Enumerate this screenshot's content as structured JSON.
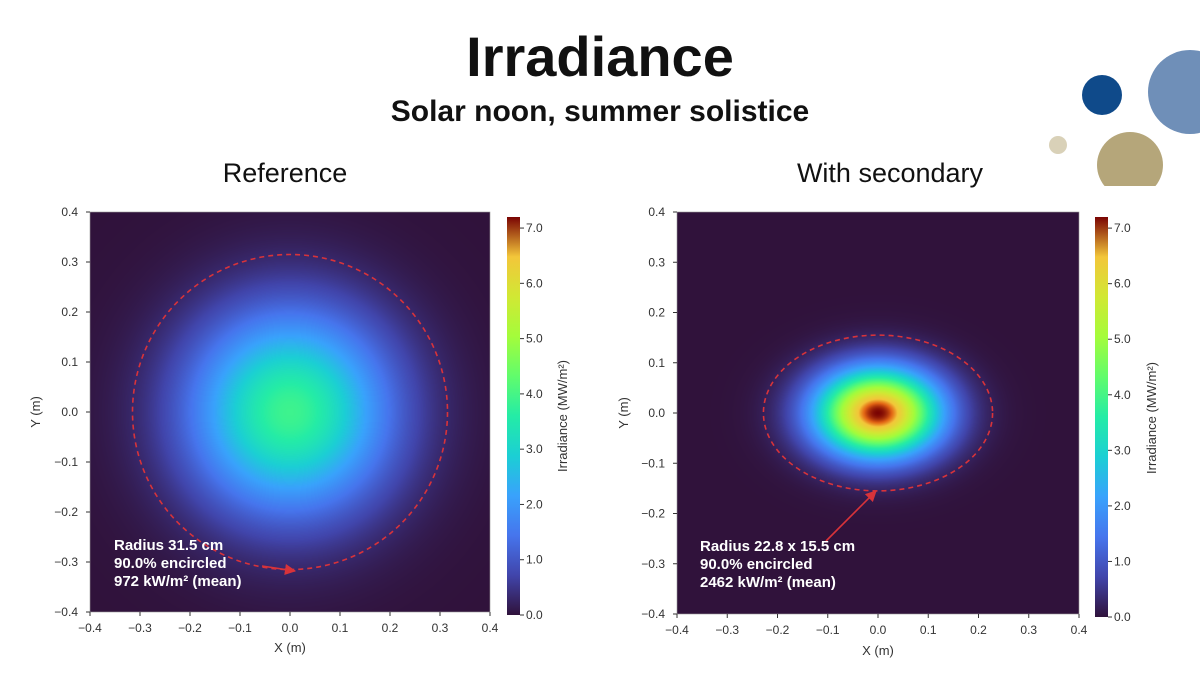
{
  "slide": {
    "title": "Irradiance",
    "subtitle": "Solar noon, summer solistice",
    "decor_colors": [
      "#0f4a8a",
      "#6f8fb8",
      "#b5a67a",
      "#d9d1b8"
    ]
  },
  "chart_data": [
    {
      "type": "heatmap",
      "panel_title": "Reference",
      "xlabel": "X (m)",
      "ylabel": "Y (m)",
      "xlim": [
        -0.4,
        0.4
      ],
      "ylim": [
        -0.4,
        0.4
      ],
      "x_ticks": [
        "−0.4",
        "−0.3",
        "−0.2",
        "−0.1",
        "0.0",
        "0.1",
        "0.2",
        "0.3",
        "0.4"
      ],
      "y_ticks": [
        "0.4",
        "0.3",
        "0.2",
        "0.1",
        "0.0",
        "−0.1",
        "−0.2",
        "−0.3",
        "−0.4"
      ],
      "colorbar": {
        "label": "Irradiance (MW/m²)",
        "range": [
          0,
          7.2
        ],
        "ticks": [
          "0.0",
          "1.0",
          "2.0",
          "3.0",
          "4.0",
          "5.0",
          "6.0",
          "7.0"
        ]
      },
      "peak_value": 3.9,
      "spot_sigma_m": [
        0.14,
        0.14
      ],
      "encircled_ellipse_m": {
        "cx": 0.0,
        "cy": 0.0,
        "rx": 0.315,
        "ry": 0.315
      },
      "annotation_lines": [
        "Radius 31.5 cm",
        "90.0% encircled",
        "972 kW/m² (mean)"
      ]
    },
    {
      "type": "heatmap",
      "panel_title": "With secondary",
      "xlabel": "X (m)",
      "ylabel": "Y (m)",
      "xlim": [
        -0.4,
        0.4
      ],
      "ylim": [
        -0.4,
        0.4
      ],
      "x_ticks": [
        "−0.4",
        "−0.3",
        "−0.2",
        "−0.1",
        "0.0",
        "0.1",
        "0.2",
        "0.3",
        "0.4"
      ],
      "y_ticks": [
        "0.4",
        "0.3",
        "0.2",
        "0.1",
        "0.0",
        "−0.1",
        "−0.2",
        "−0.3",
        "−0.4"
      ],
      "colorbar": {
        "label": "Irradiance (MW/m²)",
        "range": [
          0,
          7.2
        ],
        "ticks": [
          "0.0",
          "1.0",
          "2.0",
          "3.0",
          "4.0",
          "5.0",
          "6.0",
          "7.0"
        ]
      },
      "peak_value": 7.2,
      "spot_sigma_m": [
        0.085,
        0.06
      ],
      "encircled_ellipse_m": {
        "cx": 0.0,
        "cy": 0.0,
        "rx": 0.228,
        "ry": 0.155
      },
      "annotation_lines": [
        "Radius 22.8 x 15.5 cm",
        "90.0% encircled",
        "2462 kW/m² (mean)"
      ]
    }
  ]
}
